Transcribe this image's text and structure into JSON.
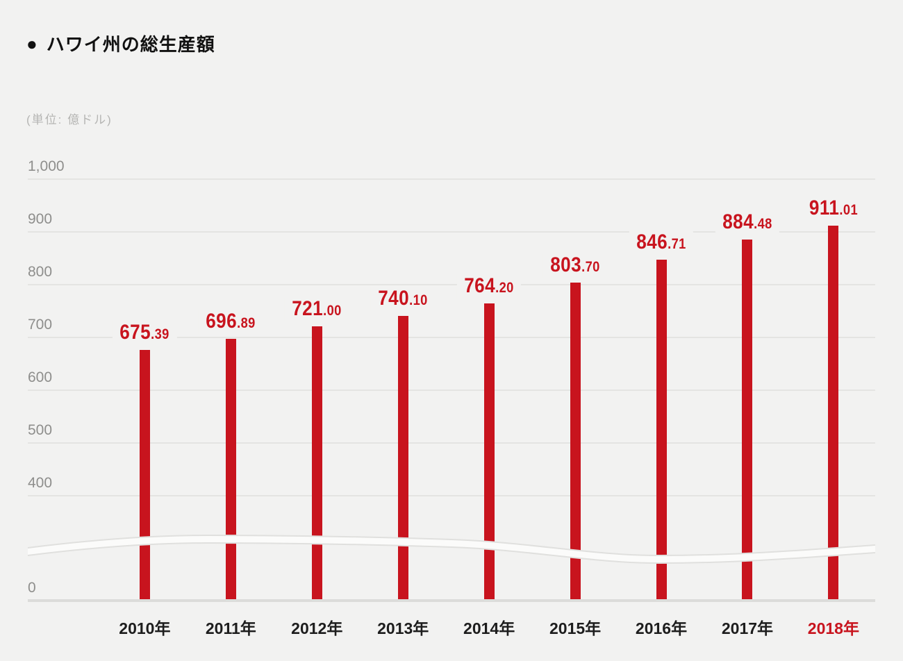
{
  "header": {
    "bullet": "●",
    "title": "ハワイ州の総生産額"
  },
  "chart_data": {
    "type": "bar",
    "title": "ハワイ州の総生産額",
    "unit_label": "(単位: 億ドル)",
    "categories": [
      "2010年",
      "2011年",
      "2012年",
      "2013年",
      "2014年",
      "2015年",
      "2016年",
      "2017年",
      "2018年"
    ],
    "values": [
      675.39,
      696.89,
      721.0,
      740.1,
      764.2,
      803.7,
      846.71,
      884.48,
      911.01
    ],
    "value_labels": [
      "675.39",
      "696.89",
      "721.00",
      "740.10",
      "764.20",
      "803.70",
      "846.71",
      "884.48",
      "911.01"
    ],
    "highlight_index": 8,
    "y_ticks": [
      {
        "label": "1,000",
        "value": 1000
      },
      {
        "label": "900",
        "value": 900
      },
      {
        "label": "800",
        "value": 800
      },
      {
        "label": "700",
        "value": 700
      },
      {
        "label": "600",
        "value": 600
      },
      {
        "label": "500",
        "value": 500
      },
      {
        "label": "400",
        "value": 400
      },
      {
        "label": "0",
        "value": 0
      }
    ],
    "ylim": [
      0,
      1000
    ],
    "axis_break_between": [
      0,
      400
    ],
    "grid": true,
    "legend": "none",
    "colors": {
      "bar": "#c8141e",
      "value_label": "#c8141e",
      "highlight_text": "#c8141e",
      "grid_line": "#e4e4e2",
      "baseline": "#dcdcda",
      "y_tick_text": "#8e8e8c",
      "x_tick_text": "#1d1d1d",
      "unit_text": "#b5b5b3",
      "title_text": "#111111",
      "background": "#f2f2f1",
      "break_band_fill": "#fbfbfa",
      "break_band_edge": "#e0e0de"
    }
  }
}
